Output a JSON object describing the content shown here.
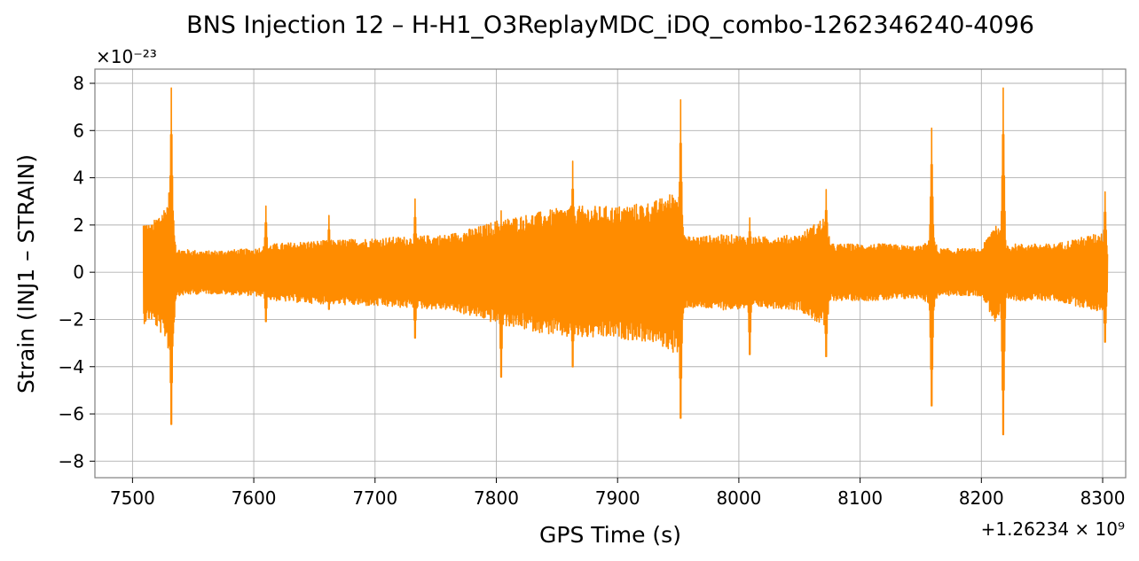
{
  "chart_data": {
    "type": "line",
    "title": "BNS Injection 12 – H-H1_O3ReplayMDC_iDQ_combo-1262346240-4096",
    "xlabel": "GPS Time (s)",
    "ylabel": "Strain (INJ1 – STRAIN)",
    "x_offset_label": "+1.26234 × 10⁹",
    "y_scale_label": "×10⁻²³",
    "xlim": [
      7469,
      8319
    ],
    "ylim": [
      -8.7,
      8.6
    ],
    "x_ticks": [
      7500,
      7600,
      7700,
      7800,
      7900,
      8000,
      8100,
      8200,
      8300
    ],
    "y_ticks": [
      -8,
      -6,
      -4,
      -2,
      0,
      2,
      4,
      6,
      8
    ],
    "grid": true,
    "series": [
      {
        "color": "#ff8c00",
        "x_range": [
          7509,
          8304
        ],
        "description": "noise band envelope (approx +/- amplitude)",
        "envelope": [
          [
            7509,
            2.2
          ],
          [
            7515,
            2.0
          ],
          [
            7522,
            2.5
          ],
          [
            7528,
            2.9
          ],
          [
            7532,
            4.0
          ],
          [
            7536,
            1.0
          ],
          [
            7560,
            0.9
          ],
          [
            7600,
            1.0
          ],
          [
            7615,
            1.2
          ],
          [
            7640,
            1.3
          ],
          [
            7680,
            1.4
          ],
          [
            7720,
            1.5
          ],
          [
            7760,
            1.6
          ],
          [
            7790,
            2.0
          ],
          [
            7800,
            2.2
          ],
          [
            7830,
            2.5
          ],
          [
            7860,
            2.8
          ],
          [
            7880,
            2.8
          ],
          [
            7900,
            2.8
          ],
          [
            7930,
            3.0
          ],
          [
            7950,
            3.5
          ],
          [
            7956,
            1.5
          ],
          [
            7990,
            1.6
          ],
          [
            8020,
            1.5
          ],
          [
            8050,
            1.6
          ],
          [
            8072,
            2.4
          ],
          [
            8076,
            1.2
          ],
          [
            8120,
            1.2
          ],
          [
            8150,
            1.1
          ],
          [
            8161,
            1.5
          ],
          [
            8164,
            1.0
          ],
          [
            8200,
            1.0
          ],
          [
            8212,
            2.2
          ],
          [
            8220,
            1.2
          ],
          [
            8260,
            1.2
          ],
          [
            8300,
            1.7
          ],
          [
            8304,
            1.0
          ]
        ],
        "spikes": [
          {
            "x": 7532,
            "y_max": 7.8,
            "y_min": -7.4
          },
          {
            "x": 7610,
            "y_max": 2.8,
            "y_min": -2.4
          },
          {
            "x": 7662,
            "y_max": 2.4,
            "y_min": -1.8
          },
          {
            "x": 7733,
            "y_max": 3.1,
            "y_min": -3.2
          },
          {
            "x": 7804,
            "y_max": 2.6,
            "y_min": -5.1
          },
          {
            "x": 7863,
            "y_max": 4.7,
            "y_min": -4.6
          },
          {
            "x": 7952,
            "y_max": 7.3,
            "y_min": -7.1
          },
          {
            "x": 8009,
            "y_max": 2.3,
            "y_min": -4.0
          },
          {
            "x": 8072,
            "y_max": 3.5,
            "y_min": -4.1
          },
          {
            "x": 8159,
            "y_max": 6.1,
            "y_min": -6.5
          },
          {
            "x": 8218,
            "y_max": 7.8,
            "y_min": -7.9
          },
          {
            "x": 8302,
            "y_max": 3.4,
            "y_min": -3.4
          }
        ]
      }
    ]
  }
}
